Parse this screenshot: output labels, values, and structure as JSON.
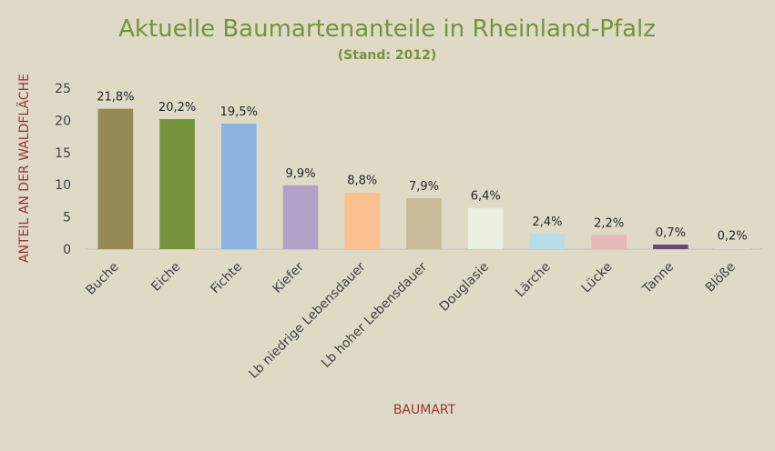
{
  "chart_data": {
    "type": "bar",
    "title": "Aktuelle Baumartenanteile in Rheinland-Pfalz",
    "subtitle": "(Stand: 2012)",
    "xlabel": "BAUMART",
    "ylabel": "ANTEIL AN DER WALDFLÄCHE",
    "ylim": [
      0,
      25
    ],
    "yticks": [
      "0",
      "5",
      "10",
      "15",
      "20",
      "25"
    ],
    "grid": false,
    "legend": "none",
    "categories": [
      "Buche",
      "Eiche",
      "Fichte",
      "Kiefer",
      "Lb niedrige Lebensdauer",
      "Lb hoher Lebensdauer",
      "Douglasie",
      "Lärche",
      "Lücke",
      "Tanne",
      "Blöße"
    ],
    "values": [
      21.8,
      20.2,
      19.5,
      9.9,
      8.8,
      7.9,
      6.4,
      2.4,
      2.2,
      0.7,
      0.2
    ],
    "data_labels": [
      "21,8%",
      "20,2%",
      "19,5%",
      "9,9%",
      "8,8%",
      "7,9%",
      "6,4%",
      "2,4%",
      "2,2%",
      "0,7%",
      "0,2%"
    ],
    "colors": [
      "#948a54",
      "#77933c",
      "#8db3e2",
      "#b3a2c7",
      "#fac090",
      "#c4bd97",
      "#ebf1de",
      "#b7dee8",
      "#e6b9b8",
      "#604a7b",
      "#d9d9d9"
    ]
  }
}
